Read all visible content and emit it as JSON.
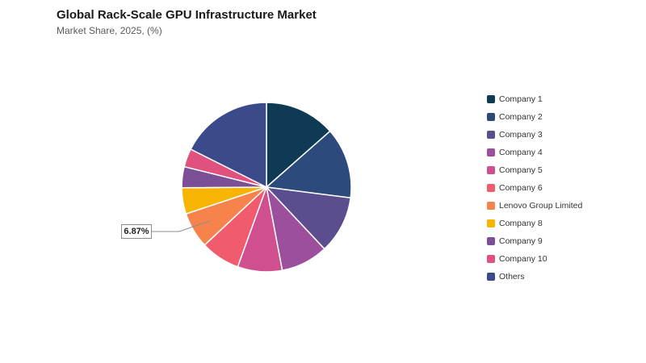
{
  "chart_data": {
    "type": "pie",
    "title": "Global Rack-Scale GPU Infrastructure Market",
    "subtitle": "Market Share, 2025, (%)",
    "slices": [
      {
        "label": "Company 1",
        "value": 13.5,
        "color": "#0f3a54"
      },
      {
        "label": "Company 2",
        "value": 13.5,
        "color": "#2c4a7c"
      },
      {
        "label": "Company 3",
        "value": 11.0,
        "color": "#5c4d8e"
      },
      {
        "label": "Company 4",
        "value": 9.0,
        "color": "#9b4f9c"
      },
      {
        "label": "Company 5",
        "value": 8.5,
        "color": "#d04f8e"
      },
      {
        "label": "Company 6",
        "value": 7.5,
        "color": "#f05b6e"
      },
      {
        "label": "Lenovo Group Limited",
        "value": 6.87,
        "color": "#f5834b"
      },
      {
        "label": "Company 8",
        "value": 5.0,
        "color": "#f7b400"
      },
      {
        "label": "Company 9",
        "value": 4.0,
        "color": "#7a4f96"
      },
      {
        "label": "Company 10",
        "value": 3.5,
        "color": "#e0517e"
      },
      {
        "label": "Others",
        "value": 17.6,
        "color": "#3b4a8a"
      }
    ],
    "annotations": [
      {
        "target": "Lenovo Group Limited",
        "text": "6.87%"
      }
    ],
    "legend": "right"
  }
}
